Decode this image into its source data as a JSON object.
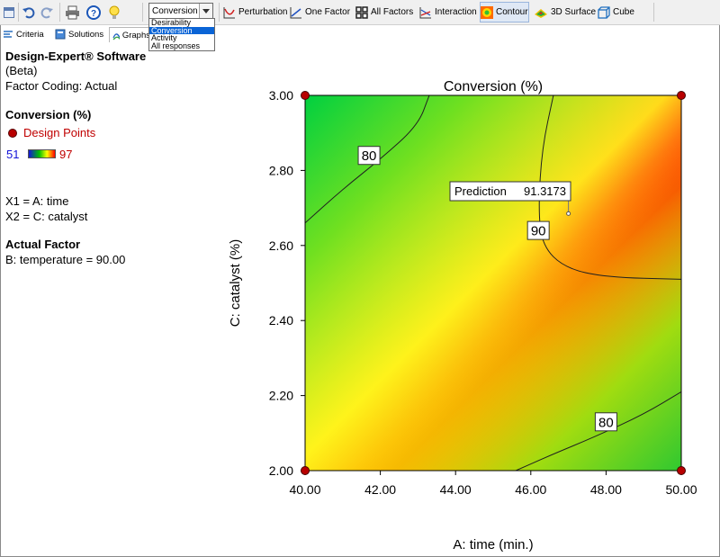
{
  "toolbar": {
    "response_select": {
      "value": "Conversion"
    },
    "response_options": [
      "Desirability",
      "Conversion",
      "Activity",
      "All responses"
    ],
    "selected_option_index": 1,
    "buttons": [
      {
        "label": "Perturbation",
        "icon": "perturbation-icon"
      },
      {
        "label": "One Factor",
        "icon": "one-factor-icon"
      },
      {
        "label": "All Factors",
        "icon": "all-factors-icon"
      },
      {
        "label": "Interaction",
        "icon": "interaction-icon"
      },
      {
        "label": "Contour",
        "icon": "contour-icon"
      },
      {
        "label": "3D Surface",
        "icon": "3d-surface-icon"
      },
      {
        "label": "Cube",
        "icon": "cube-icon"
      }
    ],
    "active_button": "Contour"
  },
  "tabs": [
    {
      "label": "Criteria",
      "icon": "criteria-icon"
    },
    {
      "label": "Solutions",
      "icon": "solutions-icon"
    },
    {
      "label": "Graphs",
      "icon": "graphs-icon"
    }
  ],
  "active_tab": "Graphs",
  "side_panel": {
    "software": "Design-Expert® Software",
    "version": "(Beta)",
    "coding": "Factor Coding: Actual",
    "response_title": "Conversion (%)",
    "design_points_label": "Design Points",
    "scale_min": "51",
    "scale_max": "97",
    "x1": "X1 = A: time",
    "x2": "X2 = C: catalyst",
    "actual_factor_title": "Actual Factor",
    "actual_factor_value": "B: temperature = 90.00"
  },
  "colors": {
    "low": "#00c000",
    "mid": "#ffff00",
    "high": "#ff0000",
    "scale_low_text": "#1414d8",
    "scale_high_text": "#c00000",
    "design_point": "#b80000"
  },
  "chart_data": {
    "type": "contour",
    "title": "Conversion (%)",
    "xlabel": "A: time (min.)",
    "ylabel": "C: catalyst (%)",
    "xlim": [
      40,
      50
    ],
    "ylim": [
      2.0,
      3.0
    ],
    "x_ticks": [
      "40.00",
      "42.00",
      "44.00",
      "46.00",
      "48.00",
      "50.00"
    ],
    "y_ticks": [
      "2.00",
      "2.20",
      "2.40",
      "2.60",
      "2.80",
      "3.00"
    ],
    "contours": [
      {
        "level": "80",
        "points": [
          [
            40,
            2.66
          ],
          [
            41,
            2.75
          ],
          [
            42,
            2.83
          ],
          [
            43,
            2.92
          ],
          [
            43.3,
            3.0
          ]
        ]
      },
      {
        "level": "80",
        "points": [
          [
            45.6,
            2.0
          ],
          [
            46.5,
            2.04
          ],
          [
            47.7,
            2.09
          ],
          [
            49,
            2.15
          ],
          [
            50,
            2.21
          ]
        ]
      },
      {
        "level": "90",
        "points": [
          [
            46.6,
            3.0
          ],
          [
            46.3,
            2.86
          ],
          [
            46.2,
            2.7
          ],
          [
            46.3,
            2.6
          ],
          [
            46.9,
            2.54
          ],
          [
            48,
            2.515
          ],
          [
            50,
            2.51
          ]
        ]
      }
    ],
    "contour_label_positions": [
      [
        41.7,
        2.84
      ],
      [
        48.0,
        2.13
      ],
      [
        46.2,
        2.64
      ]
    ],
    "design_points": [
      [
        40,
        2.0
      ],
      [
        50,
        2.0
      ],
      [
        40,
        3.0
      ],
      [
        50,
        3.0
      ]
    ],
    "prediction": {
      "label": "Prediction",
      "value": "91.3173",
      "x": 47.0,
      "y": 2.685
    },
    "grid": false
  }
}
